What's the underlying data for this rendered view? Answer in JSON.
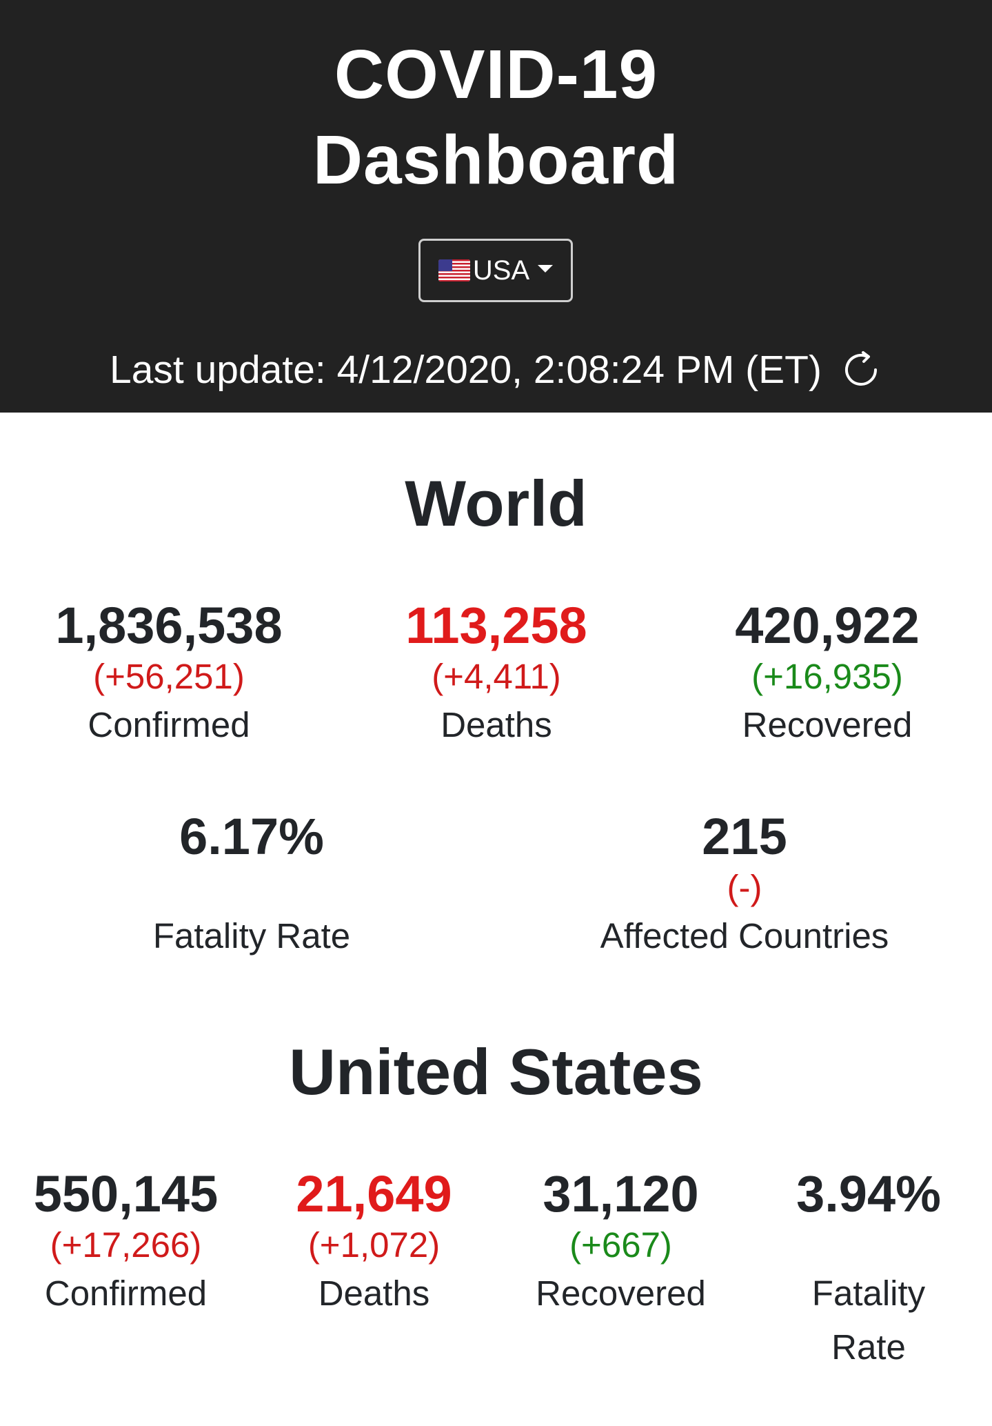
{
  "header": {
    "title_line1": "COVID-19",
    "title_line2": "Dashboard",
    "country_select": {
      "selected": "USA",
      "flag": "us-flag-icon"
    },
    "last_update": "Last update: 4/12/2020, 2:08:24 PM (ET)",
    "refresh_icon": "refresh-icon"
  },
  "world": {
    "title": "World",
    "confirmed": {
      "value": "1,836,538",
      "delta": "(+56,251)",
      "label": "Confirmed"
    },
    "deaths": {
      "value": "113,258",
      "delta": "(+4,411)",
      "label": "Deaths"
    },
    "recovered": {
      "value": "420,922",
      "delta": "(+16,935)",
      "label": "Recovered"
    },
    "fatality_rate": {
      "value": "6.17%",
      "label": "Fatality Rate"
    },
    "affected_countries": {
      "value": "215",
      "delta": "(-)",
      "label": "Affected Countries"
    }
  },
  "us": {
    "title": "United States",
    "confirmed": {
      "value": "550,145",
      "delta": "(+17,266)",
      "label": "Confirmed"
    },
    "deaths": {
      "value": "21,649",
      "delta": "(+1,072)",
      "label": "Deaths"
    },
    "recovered": {
      "value": "31,120",
      "delta": "(+667)",
      "label": "Recovered"
    },
    "fatality_rate": {
      "value": "3.94%",
      "label_line1": "Fatality",
      "label_line2": "Rate"
    }
  },
  "colors": {
    "header_bg": "#222222",
    "death_red": "#e01b1b",
    "delta_red": "#d01a1a",
    "delta_green": "#1a8a1a",
    "text_dark": "#222529"
  }
}
